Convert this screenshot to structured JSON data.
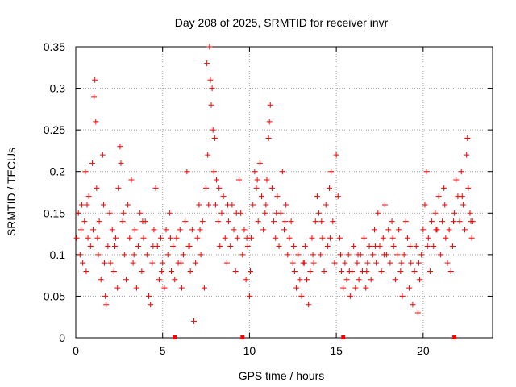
{
  "chart_data": {
    "type": "scatter",
    "title": "Day 208 of 2025, SRMTID for receiver invr",
    "xlabel": "GPS time / hours",
    "ylabel": "SRMTID / TECUs",
    "xlim": [
      0,
      24
    ],
    "ylim": [
      0,
      0.35
    ],
    "x_ticks": [
      0,
      5,
      10,
      15,
      20
    ],
    "y_ticks": [
      0,
      0.05,
      0.1,
      0.15,
      0.2,
      0.25,
      0.3,
      0.35
    ],
    "x_tick_labels": [
      "0",
      "5",
      "10",
      "15",
      "20"
    ],
    "y_tick_labels": [
      "0",
      "0.05",
      "0.1",
      "0.15",
      "0.2",
      "0.25",
      "0.3",
      "0.35"
    ],
    "grid": true,
    "marker": "+",
    "color": "#ff0000",
    "gap_markers_x": [
      5.7,
      9.6,
      15.4,
      21.8
    ],
    "series": [
      {
        "values": [
          [
            0.05,
            0.12
          ],
          [
            0.15,
            0.15
          ],
          [
            0.25,
            0.1
          ],
          [
            0.35,
            0.16
          ],
          [
            0.4,
            0.09
          ],
          [
            0.5,
            0.14
          ],
          [
            0.55,
            0.2
          ],
          [
            0.6,
            0.08
          ],
          [
            0.7,
            0.12
          ],
          [
            0.75,
            0.17
          ],
          [
            0.85,
            0.11
          ],
          [
            0.95,
            0.21
          ],
          [
            1.0,
            0.13
          ],
          [
            1.05,
            0.29
          ],
          [
            1.1,
            0.31
          ],
          [
            1.15,
            0.26
          ],
          [
            1.2,
            0.18
          ],
          [
            1.3,
            0.1
          ],
          [
            1.35,
            0.14
          ],
          [
            1.45,
            0.07
          ],
          [
            1.55,
            0.22
          ],
          [
            1.6,
            0.16
          ],
          [
            1.7,
            0.05
          ],
          [
            1.75,
            0.04
          ],
          [
            1.85,
            0.11
          ],
          [
            1.95,
            0.15
          ],
          [
            2.0,
            0.09
          ],
          [
            2.1,
            0.13
          ],
          [
            2.2,
            0.08
          ],
          [
            2.3,
            0.12
          ],
          [
            2.4,
            0.06
          ],
          [
            2.45,
            0.18
          ],
          [
            2.55,
            0.23
          ],
          [
            2.6,
            0.21
          ],
          [
            2.7,
            0.14
          ],
          [
            2.8,
            0.1
          ],
          [
            2.9,
            0.07
          ],
          [
            3.0,
            0.16
          ],
          [
            3.1,
            0.12
          ],
          [
            3.2,
            0.19
          ],
          [
            3.3,
            0.09
          ],
          [
            3.4,
            0.13
          ],
          [
            3.5,
            0.06
          ],
          [
            3.6,
            0.11
          ],
          [
            3.7,
            0.15
          ],
          [
            3.8,
            0.08
          ],
          [
            3.9,
            0.12
          ],
          [
            4.0,
            0.14
          ],
          [
            4.1,
            0.1
          ],
          [
            4.2,
            0.05
          ],
          [
            4.3,
            0.04
          ],
          [
            4.4,
            0.09
          ],
          [
            4.5,
            0.13
          ],
          [
            4.6,
            0.18
          ],
          [
            4.7,
            0.11
          ],
          [
            4.8,
            0.07
          ],
          [
            4.9,
            0.12
          ],
          [
            5.0,
            0.09
          ],
          [
            5.1,
            0.06
          ],
          [
            5.2,
            0.13
          ],
          [
            5.3,
            0.1
          ],
          [
            5.4,
            0.15
          ],
          [
            5.5,
            0.08
          ],
          [
            5.6,
            0.11
          ],
          [
            5.7,
            0.07
          ],
          [
            5.8,
            0.12
          ],
          [
            5.9,
            0.09
          ],
          [
            6.0,
            0.13
          ],
          [
            6.1,
            0.06
          ],
          [
            6.2,
            0.1
          ],
          [
            6.3,
            0.14
          ],
          [
            6.4,
            0.2
          ],
          [
            6.5,
            0.11
          ],
          [
            6.6,
            0.08
          ],
          [
            6.7,
            0.13
          ],
          [
            6.8,
            0.02
          ],
          [
            6.9,
            0.09
          ],
          [
            7.0,
            0.12
          ],
          [
            7.1,
            0.16
          ],
          [
            7.2,
            0.1
          ],
          [
            7.3,
            0.14
          ],
          [
            7.4,
            0.06
          ],
          [
            7.5,
            0.18
          ],
          [
            7.55,
            0.33
          ],
          [
            7.6,
            0.22
          ],
          [
            7.7,
            0.35
          ],
          [
            7.75,
            0.31
          ],
          [
            7.8,
            0.28
          ],
          [
            7.85,
            0.3
          ],
          [
            7.9,
            0.25
          ],
          [
            7.95,
            0.2
          ],
          [
            8.0,
            0.24
          ],
          [
            8.05,
            0.16
          ],
          [
            8.1,
            0.19
          ],
          [
            8.2,
            0.14
          ],
          [
            8.3,
            0.11
          ],
          [
            8.4,
            0.15
          ],
          [
            8.5,
            0.17
          ],
          [
            8.6,
            0.12
          ],
          [
            8.7,
            0.09
          ],
          [
            8.8,
            0.14
          ],
          [
            8.9,
            0.11
          ],
          [
            9.0,
            0.16
          ],
          [
            9.1,
            0.13
          ],
          [
            9.2,
            0.08
          ],
          [
            9.3,
            0.12
          ],
          [
            9.4,
            0.19
          ],
          [
            9.5,
            0.15
          ],
          [
            9.6,
            0.1
          ],
          [
            9.7,
            0.13
          ],
          [
            9.8,
            0.07
          ],
          [
            9.9,
            0.11
          ],
          [
            10.0,
            0.05
          ],
          [
            10.05,
            0.08
          ],
          [
            10.1,
            0.12
          ],
          [
            10.2,
            0.16
          ],
          [
            10.3,
            0.2
          ],
          [
            10.4,
            0.18
          ],
          [
            10.5,
            0.14
          ],
          [
            10.6,
            0.21
          ],
          [
            10.7,
            0.17
          ],
          [
            10.8,
            0.13
          ],
          [
            10.9,
            0.15
          ],
          [
            11.0,
            0.19
          ],
          [
            11.1,
            0.24
          ],
          [
            11.15,
            0.26
          ],
          [
            11.2,
            0.28
          ],
          [
            11.3,
            0.18
          ],
          [
            11.4,
            0.14
          ],
          [
            11.5,
            0.12
          ],
          [
            11.6,
            0.17
          ],
          [
            11.7,
            0.11
          ],
          [
            11.8,
            0.15
          ],
          [
            11.9,
            0.2
          ],
          [
            12.0,
            0.13
          ],
          [
            12.1,
            0.16
          ],
          [
            12.2,
            0.1
          ],
          [
            12.3,
            0.12
          ],
          [
            12.4,
            0.14
          ],
          [
            12.5,
            0.09
          ],
          [
            12.6,
            0.08
          ],
          [
            12.7,
            0.06
          ],
          [
            12.8,
            0.1
          ],
          [
            12.9,
            0.07
          ],
          [
            13.0,
            0.05
          ],
          [
            13.1,
            0.09
          ],
          [
            13.2,
            0.11
          ],
          [
            13.3,
            0.07
          ],
          [
            13.4,
            0.04
          ],
          [
            13.5,
            0.08
          ],
          [
            13.6,
            0.12
          ],
          [
            13.7,
            0.09
          ],
          [
            13.8,
            0.14
          ],
          [
            13.9,
            0.17
          ],
          [
            14.0,
            0.15
          ],
          [
            14.1,
            0.1
          ],
          [
            14.2,
            0.12
          ],
          [
            14.3,
            0.08
          ],
          [
            14.4,
            0.16
          ],
          [
            14.5,
            0.11
          ],
          [
            14.6,
            0.18
          ],
          [
            14.7,
            0.2
          ],
          [
            14.8,
            0.14
          ],
          [
            14.9,
            0.09
          ],
          [
            15.0,
            0.22
          ],
          [
            15.1,
            0.17
          ],
          [
            15.2,
            0.12
          ],
          [
            15.3,
            0.08
          ],
          [
            15.4,
            0.06
          ],
          [
            15.5,
            0.09
          ],
          [
            15.6,
            0.07
          ],
          [
            15.7,
            0.1
          ],
          [
            15.8,
            0.05
          ],
          [
            15.9,
            0.08
          ],
          [
            16.0,
            0.11
          ],
          [
            16.1,
            0.06
          ],
          [
            16.2,
            0.09
          ],
          [
            16.3,
            0.07
          ],
          [
            16.4,
            0.1
          ],
          [
            16.5,
            0.08
          ],
          [
            16.6,
            0.12
          ],
          [
            16.7,
            0.06
          ],
          [
            16.8,
            0.09
          ],
          [
            16.9,
            0.11
          ],
          [
            17.0,
            0.07
          ],
          [
            17.1,
            0.1
          ],
          [
            17.2,
            0.13
          ],
          [
            17.3,
            0.09
          ],
          [
            17.4,
            0.15
          ],
          [
            17.5,
            0.11
          ],
          [
            17.6,
            0.08
          ],
          [
            17.7,
            0.12
          ],
          [
            17.8,
            0.16
          ],
          [
            17.9,
            0.1
          ],
          [
            18.0,
            0.13
          ],
          [
            18.1,
            0.09
          ],
          [
            18.2,
            0.14
          ],
          [
            18.3,
            0.11
          ],
          [
            18.4,
            0.07
          ],
          [
            18.5,
            0.1
          ],
          [
            18.6,
            0.13
          ],
          [
            18.7,
            0.08
          ],
          [
            18.8,
            0.05
          ],
          [
            18.9,
            0.1
          ],
          [
            19.0,
            0.14
          ],
          [
            19.1,
            0.12
          ],
          [
            19.2,
            0.06
          ],
          [
            19.3,
            0.09
          ],
          [
            19.4,
            0.04
          ],
          [
            19.5,
            0.08
          ],
          [
            19.6,
            0.11
          ],
          [
            19.7,
            0.03
          ],
          [
            19.8,
            0.07
          ],
          [
            19.9,
            0.1
          ],
          [
            20.0,
            0.13
          ],
          [
            20.1,
            0.16
          ],
          [
            20.2,
            0.2
          ],
          [
            20.3,
            0.12
          ],
          [
            20.4,
            0.08
          ],
          [
            20.5,
            0.14
          ],
          [
            20.6,
            0.11
          ],
          [
            20.7,
            0.15
          ],
          [
            20.8,
            0.13
          ],
          [
            20.9,
            0.17
          ],
          [
            21.0,
            0.1
          ],
          [
            21.1,
            0.14
          ],
          [
            21.2,
            0.18
          ],
          [
            21.3,
            0.12
          ],
          [
            21.4,
            0.09
          ],
          [
            21.5,
            0.13
          ],
          [
            21.6,
            0.08
          ],
          [
            21.7,
            0.11
          ],
          [
            21.8,
            0.15
          ],
          [
            21.9,
            0.19
          ],
          [
            22.0,
            0.17
          ],
          [
            22.1,
            0.14
          ],
          [
            22.2,
            0.2
          ],
          [
            22.3,
            0.16
          ],
          [
            22.4,
            0.13
          ],
          [
            22.5,
            0.22
          ],
          [
            22.55,
            0.24
          ],
          [
            22.6,
            0.18
          ],
          [
            22.7,
            0.15
          ],
          [
            22.8,
            0.12
          ],
          [
            22.85,
            0.14
          ],
          [
            0.3,
            0.13
          ],
          [
            0.65,
            0.16
          ],
          [
            1.25,
            0.12
          ],
          [
            1.65,
            0.09
          ],
          [
            2.25,
            0.11
          ],
          [
            2.75,
            0.15
          ],
          [
            3.35,
            0.1
          ],
          [
            3.85,
            0.14
          ],
          [
            4.45,
            0.11
          ],
          [
            4.95,
            0.08
          ],
          [
            5.45,
            0.12
          ],
          [
            6.05,
            0.09
          ],
          [
            6.55,
            0.11
          ],
          [
            7.15,
            0.13
          ],
          [
            7.65,
            0.16
          ],
          [
            8.25,
            0.18
          ],
          [
            8.75,
            0.16
          ],
          [
            9.25,
            0.15
          ],
          [
            9.85,
            0.12
          ],
          [
            10.45,
            0.19
          ],
          [
            10.95,
            0.16
          ],
          [
            11.55,
            0.15
          ],
          [
            12.05,
            0.14
          ],
          [
            12.55,
            0.11
          ],
          [
            13.15,
            0.09
          ],
          [
            13.65,
            0.1
          ],
          [
            14.15,
            0.14
          ],
          [
            14.65,
            0.12
          ],
          [
            15.25,
            0.1
          ],
          [
            15.75,
            0.08
          ],
          [
            16.25,
            0.1
          ],
          [
            16.75,
            0.08
          ],
          [
            17.25,
            0.11
          ],
          [
            17.75,
            0.1
          ],
          [
            18.25,
            0.12
          ],
          [
            18.75,
            0.09
          ],
          [
            19.25,
            0.11
          ],
          [
            19.75,
            0.09
          ],
          [
            20.25,
            0.11
          ],
          [
            20.75,
            0.13
          ],
          [
            21.25,
            0.16
          ],
          [
            21.75,
            0.14
          ],
          [
            22.25,
            0.17
          ],
          [
            22.75,
            0.14
          ]
        ]
      }
    ]
  }
}
